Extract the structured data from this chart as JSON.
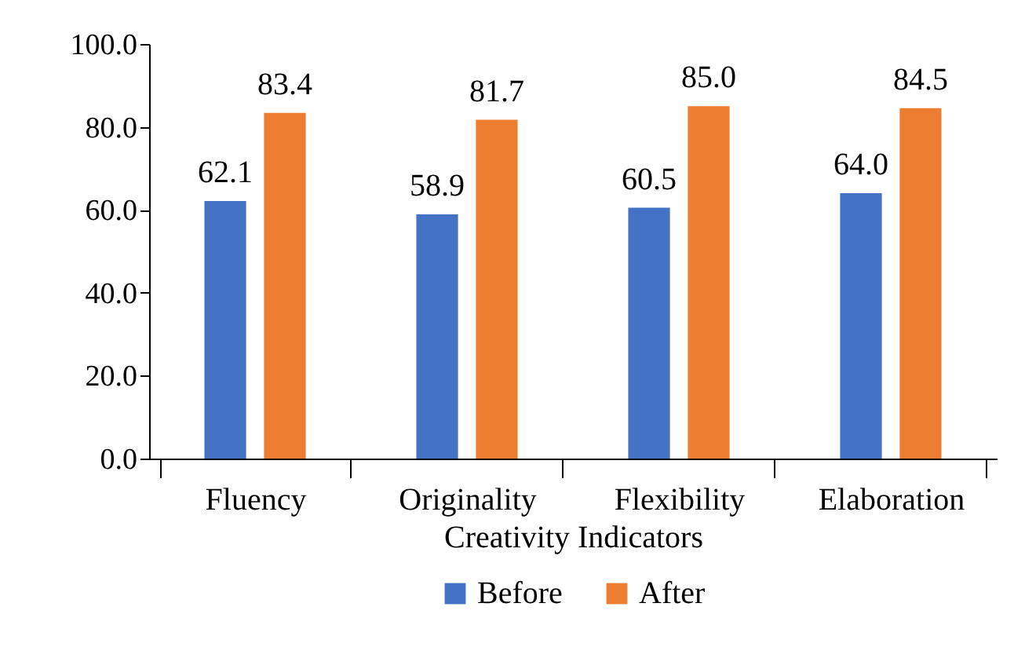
{
  "chart_data": {
    "type": "bar",
    "xlabel": "Creativity Indicators",
    "categories": [
      "Fluency",
      "Originality",
      "Flexibility",
      "Elaboration"
    ],
    "series": [
      {
        "name": "Before",
        "color": "#4472c4",
        "values": [
          62.1,
          58.9,
          60.5,
          64.0
        ],
        "value_labels": [
          "62.1",
          "58.9",
          "60.5",
          "64.0"
        ]
      },
      {
        "name": "After",
        "color": "#ed7d31",
        "values": [
          83.4,
          81.7,
          85.0,
          84.5
        ],
        "value_labels": [
          "83.4",
          "81.7",
          "85.0",
          "84.5"
        ]
      }
    ],
    "ylim": [
      0,
      100
    ],
    "yticks": [
      {
        "value": 0,
        "label": "0.0"
      },
      {
        "value": 20,
        "label": "20.0"
      },
      {
        "value": 40,
        "label": "40.0"
      },
      {
        "value": 60,
        "label": "60.0"
      },
      {
        "value": 80,
        "label": "80.0"
      },
      {
        "value": 100,
        "label": "100.0"
      }
    ],
    "grid": false,
    "legend": "bottom"
  }
}
